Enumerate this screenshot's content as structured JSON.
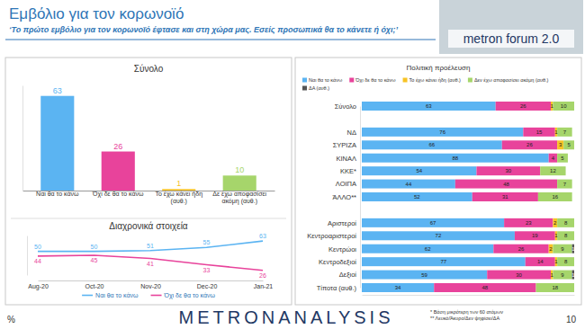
{
  "page": {
    "title": "Εμβόλιο για τον κορωνοϊό",
    "subtitle": "‘Το πρώτο εμβόλιο για τον κορωνοϊό έφτασε και στη χώρα μας. Εσείς προσωπικά θα το κάνετε ή όχι;’",
    "logo": "metron forum 2.0",
    "brand": "METRONANALYSIS",
    "notes": [
      "* Βάση μικρότερη των 60 ατόμων",
      "** Λευκό/Άκυρο/Δεν ψηφίσει/ΔΑ"
    ],
    "unit": "%",
    "page_number": "10"
  },
  "chart_data": [
    {
      "type": "bar",
      "title": "Σύνολο",
      "categories": [
        "Ναι θα το κάνω",
        "Όχι δε θα το κάνω",
        "Το έχω κάνει ήδη (αυθ.)",
        "Δε έχω αποφασίσει ακόμη (αυθ.)"
      ],
      "values": [
        63,
        26,
        1,
        10
      ],
      "colors": [
        "#5bb4f2",
        "#e8439b",
        "#f7c325",
        "#a6d56b"
      ],
      "ylim": [
        0,
        70
      ],
      "data_labels": true,
      "tick_labels": "x"
    },
    {
      "type": "line",
      "title": "Διαχρονικά στοιχεία",
      "categories": [
        "Aug-20",
        "Oct-20",
        "Nov-20",
        "Dec-20",
        "Jan-21"
      ],
      "series": [
        {
          "name": "Ναι θα το κάνω",
          "color": "#5bb4f2",
          "values": [
            50,
            50,
            51,
            55,
            63
          ]
        },
        {
          "name": "Όχι δε θα το κάνω",
          "color": "#e8439b",
          "values": [
            44,
            45,
            41,
            33,
            26
          ]
        }
      ],
      "ylim": [
        20,
        70
      ],
      "data_labels": true,
      "tick_labels": "x",
      "legend": "bottom"
    },
    {
      "type": "bar",
      "title": "Πολιτική προέλευση",
      "orientation": "horizontal",
      "stacked": true,
      "categories": [
        "Σύνολο",
        "ΝΔ",
        "ΣΥΡΙΖΑ",
        "ΚΙΝΑΛ",
        "ΚΚΕ*",
        "ΛΟΙΠΑ",
        "ΆΛΛΟ**",
        "Αριστεροί",
        "Κεντροαριστεροί",
        "Κεντρώοι",
        "Κεντροδεξιοί",
        "Δεξιοί",
        "Τίποτα (αυθ.)"
      ],
      "series": [
        {
          "name": "Ναι θα το κάνω",
          "color": "#5bb4f2",
          "values": [
            63,
            76,
            66,
            88,
            54,
            44,
            52,
            67,
            72,
            62,
            77,
            59,
            34
          ]
        },
        {
          "name": "Όχι δε θα το κάνω",
          "color": "#e8439b",
          "values": [
            26,
            15,
            26,
            4,
            30,
            48,
            31,
            23,
            19,
            26,
            14,
            30,
            48
          ]
        },
        {
          "name": "Το έχω κάνει ήδη (αυθ.)",
          "color": "#f7c325",
          "values": [
            1,
            1,
            3,
            null,
            null,
            null,
            null,
            2,
            1,
            2,
            1,
            1,
            null
          ]
        },
        {
          "name": "Δεν έχω αποφασίσει ακόμη (αυθ.)",
          "color": "#a6d56b",
          "values": [
            10,
            7,
            5,
            5,
            12,
            7,
            16,
            8,
            8,
            9,
            8,
            9,
            18
          ]
        },
        {
          "name": "ΔΑ (αυθ.)",
          "color": "#555555",
          "values": [
            null,
            null,
            null,
            null,
            null,
            null,
            null,
            null,
            null,
            1,
            null,
            1,
            null
          ]
        }
      ],
      "xlim": [
        0,
        100
      ],
      "data_labels": true,
      "tick_labels": "y",
      "legend": "top"
    }
  ]
}
